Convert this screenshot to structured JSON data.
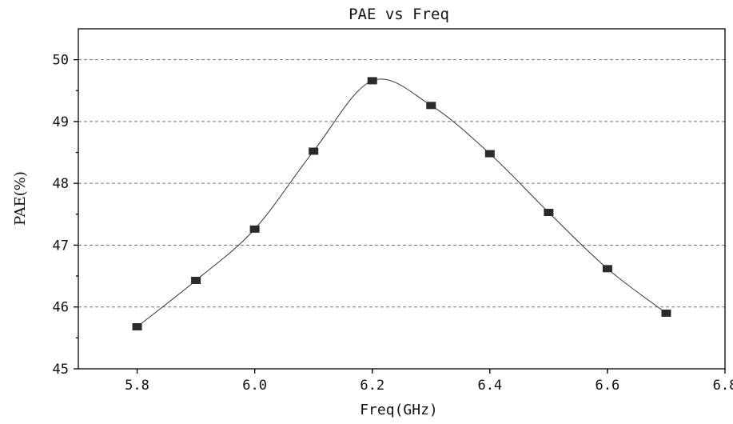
{
  "chart_data": {
    "type": "line",
    "title": "PAE vs Freq",
    "xlabel": "Freq(GHz)",
    "ylabel": "PAE(%)",
    "xlim": [
      5.7,
      6.8
    ],
    "ylim": [
      45,
      50.5
    ],
    "xticks": [
      5.8,
      6.0,
      6.2,
      6.4,
      6.6,
      6.8
    ],
    "xtick_labels": [
      "5.8",
      "6.0",
      "6.2",
      "6.4",
      "6.6",
      "6.8"
    ],
    "yticks": [
      45,
      46,
      47,
      48,
      49,
      50
    ],
    "ytick_labels": [
      "45",
      "46",
      "47",
      "48",
      "49",
      "50"
    ],
    "grid": "horizontal-dashed",
    "legend": "none",
    "smooth": true,
    "marker": "square",
    "color": "#2a2a2a",
    "series": [
      {
        "x": [
          5.8,
          5.9,
          6.0,
          6.1,
          6.2,
          6.3,
          6.4,
          6.5,
          6.6,
          6.7
        ],
        "y": [
          45.68,
          46.43,
          47.26,
          48.52,
          49.66,
          49.26,
          48.48,
          47.53,
          46.62,
          45.9
        ]
      }
    ]
  }
}
